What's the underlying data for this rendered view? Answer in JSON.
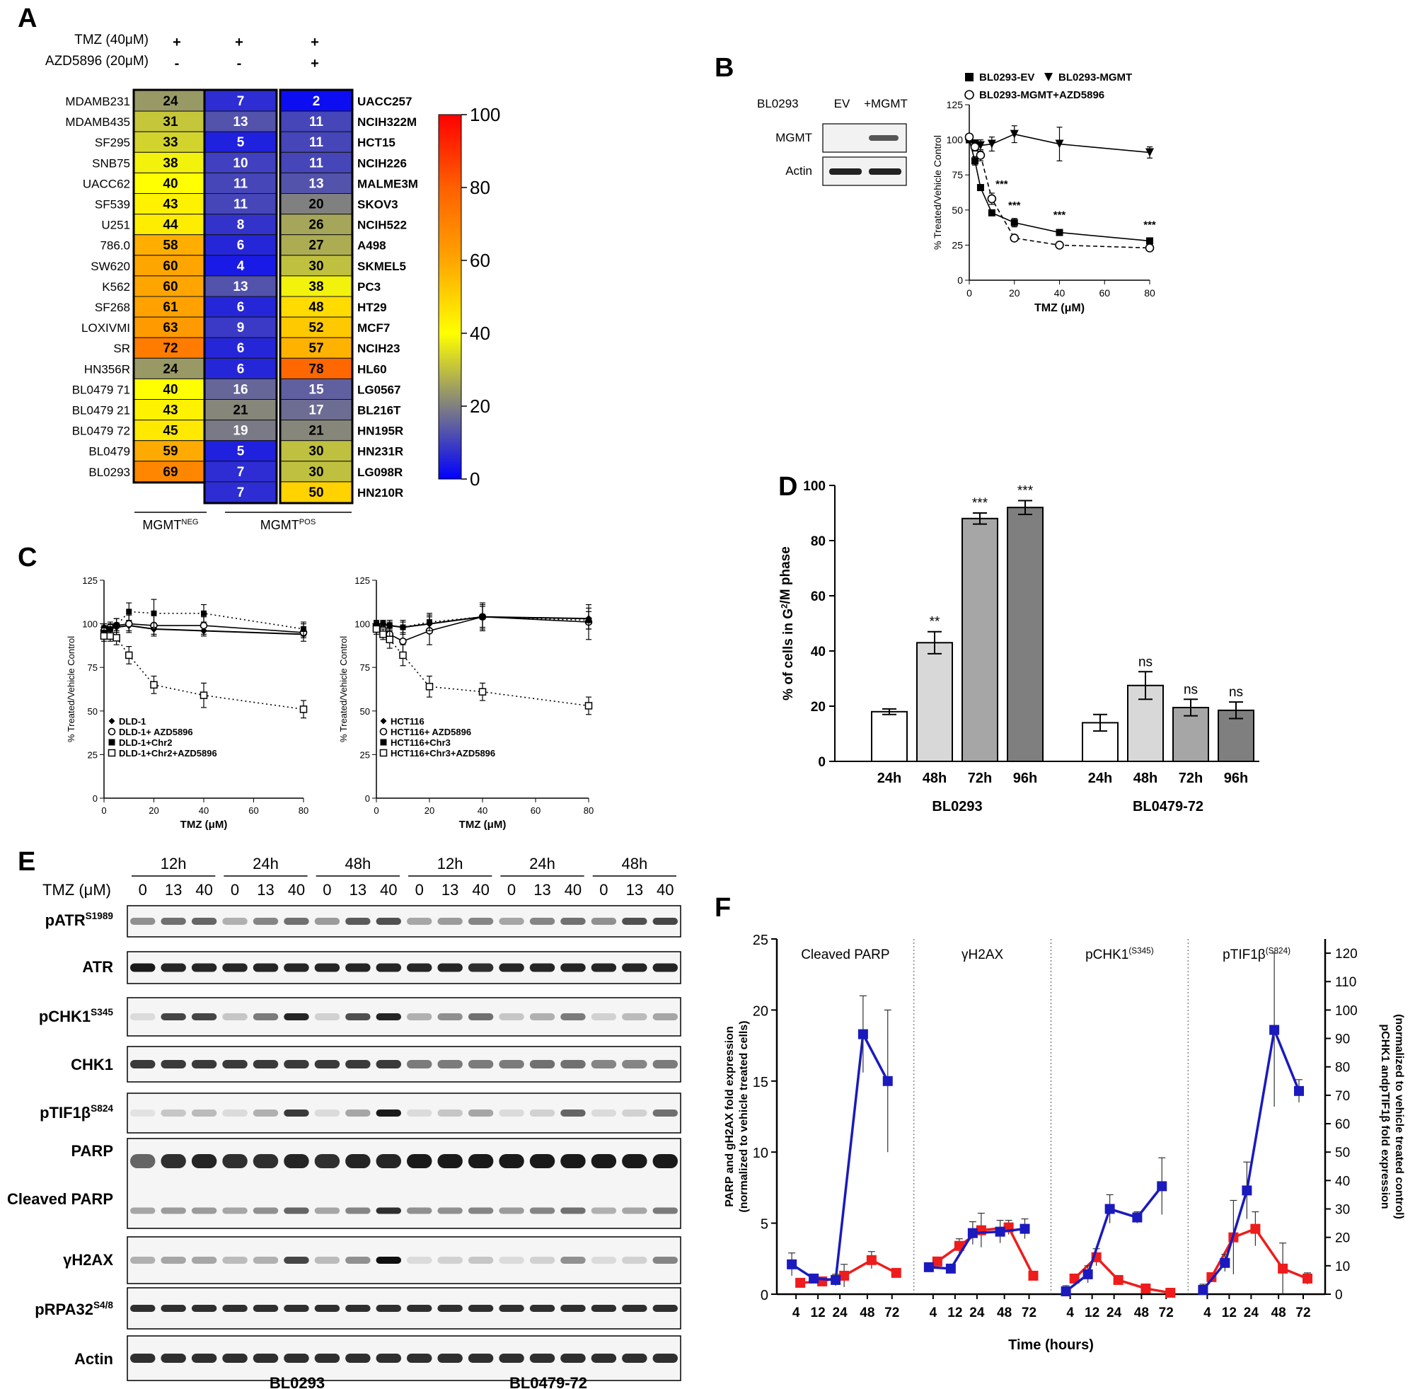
{
  "panel_letters": [
    "A",
    "B",
    "C",
    "D",
    "E",
    "F"
  ],
  "panelA": {
    "treat_rows": [
      {
        "label": "TMZ (40μM)",
        "signs": [
          "+",
          "+",
          "+"
        ]
      },
      {
        "label": "AZD5896 (20μM)",
        "signs": [
          "-",
          "-",
          "+"
        ]
      }
    ],
    "left_labels": [
      "MDAMB231",
      "MDAMB435",
      "SF295",
      "SNB75",
      "UACC62",
      "SF539",
      "U251",
      "786.0",
      "SW620",
      "K562",
      "SF268",
      "LOXIVMI",
      "SR",
      "HN356R",
      "BL0479 71",
      "BL0479 21",
      "BL0479 72",
      "BL0479",
      "BL0293"
    ],
    "col1": [
      24,
      31,
      33,
      38,
      40,
      43,
      44,
      58,
      60,
      60,
      61,
      63,
      72,
      24,
      40,
      43,
      45,
      59,
      69
    ],
    "col2": [
      7,
      13,
      5,
      10,
      11,
      11,
      8,
      6,
      4,
      13,
      6,
      9,
      6,
      6,
      16,
      21,
      19,
      5,
      7,
      7
    ],
    "col3": [
      2,
      11,
      11,
      11,
      13,
      20,
      26,
      27,
      30,
      38,
      48,
      52,
      57,
      78,
      15,
      17,
      21,
      30,
      30,
      50
    ],
    "right_labels": [
      "UACC257",
      "NCIH322M",
      "HCT15",
      "NCIH226",
      "MALME3M",
      "SKOV3",
      "NCIH522",
      "A498",
      "SKMEL5",
      "PC3",
      "HT29",
      "MCF7",
      "NCIH23",
      "HL60",
      "LG0567",
      "BL216T",
      "HN195R",
      "HN231R",
      "LG098R",
      "HN210R"
    ],
    "colorbar_ticks": [
      "0",
      "20",
      "40",
      "60",
      "80",
      "100"
    ],
    "group_neg": "MGMT",
    "group_neg_sup": "NEG",
    "group_pos": "MGMT",
    "group_pos_sup": "POS"
  },
  "panelB": {
    "cell": "BL0293",
    "lanes": [
      "EV",
      "+MGMT"
    ],
    "rows": [
      "MGMT",
      "Actin"
    ]
  },
  "chart_data": [
    {
      "id": "B",
      "type": "line",
      "ylabel": "% Treated/Vehicle Control",
      "xlabel": "TMZ (μM)",
      "xlim": [
        0,
        80
      ],
      "ylim": [
        0,
        125
      ],
      "xticks": [
        "0",
        "20",
        "40",
        "60",
        "80"
      ],
      "yticks": [
        "0",
        "25",
        "50",
        "75",
        "100",
        "125"
      ],
      "series": [
        {
          "name": "BL0293-EV",
          "x": [
            0,
            2.5,
            5,
            10,
            20,
            40,
            80
          ],
          "y": [
            100,
            85,
            66,
            48,
            41,
            34,
            28
          ],
          "err": [
            2,
            3,
            2,
            2,
            3,
            2,
            2
          ]
        },
        {
          "name": "BL0293-MGMT",
          "x": [
            0,
            2.5,
            5,
            10,
            20,
            40,
            80
          ],
          "y": [
            100,
            97,
            96,
            97,
            104,
            97,
            91
          ],
          "err": [
            2,
            3,
            4,
            5,
            6,
            12,
            4
          ]
        },
        {
          "name": "BL0293-MGMT+AZD5896",
          "x": [
            0,
            2.5,
            5,
            10,
            20,
            40,
            80
          ],
          "y": [
            102,
            95,
            89,
            58,
            30,
            25,
            23
          ],
          "err": [
            2,
            3,
            4,
            4,
            2,
            2,
            2
          ]
        }
      ],
      "annotations": [
        "***",
        "***",
        "***",
        "***"
      ]
    },
    {
      "id": "C1",
      "type": "line",
      "ylabel": "% Treated/Vehicle Control",
      "xlabel": "TMZ (μM)",
      "xlim": [
        0,
        80
      ],
      "ylim": [
        0,
        125
      ],
      "xticks": [
        "0",
        "20",
        "40",
        "60",
        "80"
      ],
      "yticks": [
        "0",
        "25",
        "50",
        "75",
        "100",
        "125"
      ],
      "series": [
        {
          "name": "DLD-1",
          "x": [
            0,
            2.5,
            5,
            10,
            20,
            40,
            80
          ],
          "y": [
            98,
            98,
            98,
            99,
            97,
            96,
            94
          ],
          "err": [
            2,
            2,
            2,
            3,
            3,
            3,
            2
          ]
        },
        {
          "name": "DLD-1+ AZD5896",
          "x": [
            0,
            2.5,
            5,
            10,
            20,
            40,
            80
          ],
          "y": [
            96,
            98,
            99,
            100,
            99,
            99,
            95
          ],
          "err": [
            3,
            3,
            4,
            5,
            6,
            5,
            5
          ]
        },
        {
          "name": "DLD-1+Chr2",
          "x": [
            0,
            2.5,
            5,
            10,
            20,
            40,
            80
          ],
          "y": [
            95,
            97,
            99,
            107,
            106,
            106,
            97
          ],
          "err": [
            3,
            3,
            4,
            5,
            8,
            5,
            4
          ]
        },
        {
          "name": "DLD-1+Chr2+AZD5896",
          "x": [
            0,
            2.5,
            5,
            10,
            20,
            40,
            80
          ],
          "y": [
            93,
            93,
            92,
            82,
            65,
            59,
            51
          ],
          "err": [
            3,
            3,
            4,
            5,
            5,
            7,
            5
          ]
        }
      ]
    },
    {
      "id": "C2",
      "type": "line",
      "ylabel": "% Treated/Vehicle Control",
      "xlabel": "TMZ (μM)",
      "xlim": [
        0,
        80
      ],
      "ylim": [
        0,
        125
      ],
      "xticks": [
        "0",
        "20",
        "40",
        "60",
        "80"
      ],
      "yticks": [
        "0",
        "25",
        "50",
        "75",
        "100",
        "125"
      ],
      "series": [
        {
          "name": "HCT116",
          "x": [
            0,
            2.5,
            5,
            10,
            20,
            40,
            80
          ],
          "y": [
            100,
            100,
            99,
            98,
            100,
            104,
            103
          ],
          "err": [
            2,
            2,
            2,
            3,
            5,
            6,
            6
          ]
        },
        {
          "name": "HCT116+ AZD5896",
          "x": [
            0,
            2.5,
            5,
            10,
            20,
            40,
            80
          ],
          "y": [
            99,
            97,
            94,
            90,
            96,
            104,
            101
          ],
          "err": [
            2,
            3,
            4,
            7,
            8,
            8,
            10
          ]
        },
        {
          "name": "HCT116+Chr3",
          "x": [
            0,
            2.5,
            5,
            10,
            20,
            40,
            80
          ],
          "y": [
            100,
            100,
            99,
            98,
            101,
            104,
            102
          ],
          "err": [
            2,
            2,
            3,
            4,
            5,
            7,
            5
          ]
        },
        {
          "name": "HCT116+Chr3+AZD5896",
          "x": [
            0,
            2.5,
            5,
            10,
            20,
            40,
            80
          ],
          "y": [
            97,
            94,
            91,
            82,
            64,
            61,
            53
          ],
          "err": [
            3,
            3,
            5,
            6,
            6,
            5,
            5
          ]
        }
      ]
    },
    {
      "id": "D",
      "type": "bar",
      "ylabel": "% of cells in G2/M phase",
      "ylim": [
        0,
        100
      ],
      "yticks": [
        "0",
        "20",
        "40",
        "60",
        "80",
        "100"
      ],
      "groups": [
        "BL0293",
        "BL0479-72"
      ],
      "categories": [
        "24h",
        "48h",
        "72h",
        "96h"
      ],
      "values": [
        [
          18,
          43,
          88,
          92
        ],
        [
          14,
          27.5,
          19.5,
          18.5
        ]
      ],
      "err": [
        [
          1,
          4,
          2,
          2.5
        ],
        [
          3,
          5,
          3,
          3
        ]
      ],
      "annotations": [
        [
          "",
          "**",
          "***",
          "***"
        ],
        [
          "",
          "ns",
          "ns",
          "ns"
        ]
      ],
      "colors": [
        "#ffffff",
        "#d8d8d8",
        "#a6a6a6",
        "#7f7f7f"
      ]
    },
    {
      "id": "F",
      "type": "line",
      "xlabel": "Time (hours)",
      "ylabel": "PARP and gH2AX fold expression",
      "ylabel2": "(normalized to vehicle treated cells)",
      "y2label": "pCHK1 andpTIF1β fold expression",
      "y2label2": "(normalized to vehicle treated control)",
      "ylim": [
        0,
        25
      ],
      "y2lim": [
        0,
        125
      ],
      "yticks": [
        "0",
        "5",
        "10",
        "15",
        "20",
        "25"
      ],
      "y2ticks": [
        "0",
        "10",
        "20",
        "30",
        "40",
        "50",
        "60",
        "70",
        "80",
        "90",
        "100",
        "110",
        "120"
      ],
      "xticks": [
        "4",
        "12",
        "24",
        "48",
        "72"
      ],
      "sections": [
        {
          "title": "Cleaved PARP",
          "blue": [
            2.1,
            1.1,
            1.0,
            18.3,
            15.0
          ],
          "blue_err": [
            0.8,
            0.3,
            0.4,
            2.7,
            5.0
          ],
          "red": [
            0.8,
            0.9,
            1.3,
            2.4,
            1.5
          ],
          "red_err": [
            0.2,
            0.2,
            0.8,
            0.6,
            0.2
          ]
        },
        {
          "title": "γH2AX",
          "blue": [
            1.9,
            1.8,
            4.3,
            4.4,
            4.6
          ],
          "blue_err": [
            0.3,
            0.3,
            0.8,
            0.8,
            0.7
          ],
          "red": [
            2.3,
            3.4,
            4.5,
            4.7,
            1.3
          ],
          "red_err": [
            0.3,
            0.5,
            1.2,
            0.5,
            0.2
          ]
        },
        {
          "title": "pCHK1",
          "title_sup": "(S345)",
          "blue": [
            1.0,
            7.0,
            30.0,
            27.0,
            38.0
          ],
          "blue_err": [
            2,
            3,
            5,
            2,
            10
          ],
          "red": [
            5.5,
            13.0,
            5.0,
            2.0,
            0.5
          ],
          "red_err": [
            1,
            3,
            1,
            1,
            0.5
          ]
        },
        {
          "title": "pTIF1β",
          "title_sup": "(S824)",
          "blue": [
            1.5,
            11.0,
            36.5,
            93.0,
            71.5
          ],
          "blue_err": [
            2,
            3,
            10,
            27,
            4
          ],
          "red": [
            6.0,
            20.0,
            23.0,
            9.0,
            5.5
          ],
          "red_err": [
            1,
            13,
            6,
            9,
            2
          ]
        }
      ],
      "colors": {
        "blue": "#1a1abf",
        "red": "#ee1c1c"
      }
    }
  ],
  "panelE": {
    "timepoints": [
      "12h",
      "24h",
      "48h",
      "12h",
      "24h",
      "48h"
    ],
    "tmz_label": "TMZ (μM)",
    "doses": [
      "0",
      "13",
      "40",
      "0",
      "13",
      "40",
      "0",
      "13",
      "40",
      "0",
      "13",
      "40",
      "0",
      "13",
      "40",
      "0",
      "13",
      "40"
    ],
    "rows": [
      {
        "base": "pATR",
        "sup": "S1989"
      },
      {
        "base": "ATR",
        "sup": ""
      },
      {
        "base": "pCHK1",
        "sup": "S345"
      },
      {
        "base": "CHK1",
        "sup": ""
      },
      {
        "base": "pTIF1β",
        "sup": "S824"
      },
      {
        "base": "PARP",
        "sup": ""
      },
      {
        "base": "Cleaved PARP",
        "sup": ""
      },
      {
        "base": "γH2AX",
        "sup": ""
      },
      {
        "base": "pRPA32",
        "sup": "S4/8"
      },
      {
        "base": "Actin",
        "sup": ""
      }
    ],
    "cells": [
      "BL0293",
      "BL0479-72"
    ]
  }
}
